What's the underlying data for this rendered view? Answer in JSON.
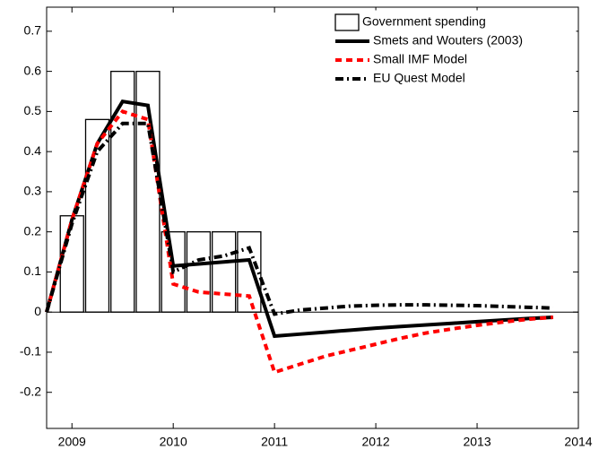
{
  "chart_data": {
    "type": "combo",
    "x": [
      2008.75,
      2009,
      2009.25,
      2009.5,
      2009.75,
      2010,
      2010.25,
      2010.5,
      2010.75,
      2011,
      2011.25,
      2011.5,
      2011.75,
      2012,
      2012.25,
      2012.5,
      2012.75,
      2013,
      2013.25,
      2013.5,
      2013.75
    ],
    "series": [
      {
        "name": "Government spending",
        "kind": "bar",
        "color": "#000000",
        "x": [
          2009,
          2009.25,
          2009.5,
          2009.75,
          2010,
          2010.25,
          2010.5,
          2010.75
        ],
        "values": [
          0.24,
          0.48,
          0.6,
          0.6,
          0.2,
          0.2,
          0.2,
          0.2
        ]
      },
      {
        "name": "Smets and Wouters (2003)",
        "kind": "line",
        "color": "#000000",
        "dash": "none",
        "values": [
          0,
          0.23,
          0.42,
          0.525,
          0.515,
          0.115,
          0.12,
          0.125,
          0.13,
          -0.06,
          -0.055,
          -0.05,
          -0.045,
          -0.04,
          -0.036,
          -0.032,
          -0.028,
          -0.024,
          -0.02,
          -0.016,
          -0.013
        ]
      },
      {
        "name": "Small IMF Model",
        "kind": "line",
        "color": "#ff0000",
        "dash": "7 5",
        "values": [
          0,
          0.23,
          0.42,
          0.5,
          0.48,
          0.07,
          0.05,
          0.045,
          0.04,
          -0.15,
          -0.13,
          -0.11,
          -0.095,
          -0.08,
          -0.065,
          -0.052,
          -0.042,
          -0.033,
          -0.025,
          -0.018,
          -0.013
        ]
      },
      {
        "name": "EU Quest Model",
        "kind": "line",
        "color": "#000000",
        "dash": "9 4 2 4",
        "values": [
          0,
          0.22,
          0.4,
          0.47,
          0.47,
          0.1,
          0.13,
          0.14,
          0.16,
          -0.005,
          0.005,
          0.01,
          0.015,
          0.017,
          0.018,
          0.018,
          0.017,
          0.016,
          0.014,
          0.012,
          0.01
        ]
      }
    ],
    "xlim": [
      2008.75,
      2014
    ],
    "ylim": [
      -0.29,
      0.76
    ],
    "xticks": [
      2009,
      2010,
      2011,
      2012,
      2013,
      2014
    ],
    "yticks": [
      -0.2,
      -0.1,
      0,
      0.1,
      0.2,
      0.3,
      0.4,
      0.5,
      0.6,
      0.7
    ],
    "legend": "upper right"
  }
}
